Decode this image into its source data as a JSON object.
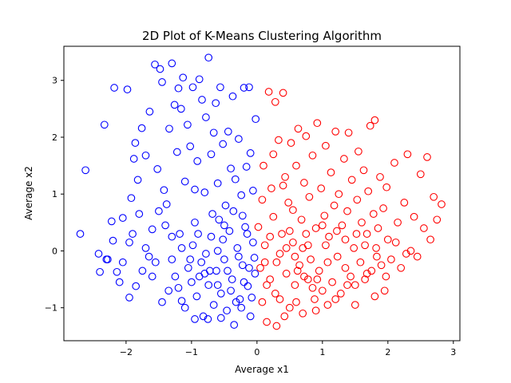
{
  "chart_data": {
    "type": "scatter",
    "title": "2D Plot of K-Means Clustering Algorithm",
    "xlabel": "Average x1",
    "ylabel": "Average x2",
    "xlim": [
      -2.95,
      3.1
    ],
    "ylim": [
      -1.58,
      3.6
    ],
    "xticks": [
      -2,
      -1,
      0,
      1,
      2,
      3
    ],
    "yticks": [
      -1,
      0,
      1,
      2,
      3
    ],
    "grid": false,
    "legend": "none",
    "marker": "hollow-circle",
    "series": [
      {
        "color": "#0000ff",
        "points": [
          [
            -2.7,
            0.3
          ],
          [
            -2.62,
            1.42
          ],
          [
            -2.42,
            -0.05
          ],
          [
            -2.4,
            -0.37
          ],
          [
            -2.33,
            2.22
          ],
          [
            -2.28,
            -0.15
          ],
          [
            -2.22,
            0.52
          ],
          [
            -2.18,
            2.87
          ],
          [
            -2.14,
            -0.37
          ],
          [
            -2.05,
            0.58
          ],
          [
            -1.98,
            2.84
          ],
          [
            -1.95,
            0.15
          ],
          [
            -1.92,
            0.93
          ],
          [
            -1.88,
            1.62
          ],
          [
            -1.86,
            1.9
          ],
          [
            -1.82,
            1.25
          ],
          [
            -1.8,
            0.65
          ],
          [
            -1.76,
            2.16
          ],
          [
            -1.7,
            1.68
          ],
          [
            -1.64,
            2.45
          ],
          [
            -1.6,
            0.38
          ],
          [
            -1.56,
            3.28
          ],
          [
            -1.52,
            1.44
          ],
          [
            -1.48,
            3.2
          ],
          [
            -1.45,
            2.97
          ],
          [
            -1.42,
            1.07
          ],
          [
            -1.38,
            0.82
          ],
          [
            -1.34,
            2.15
          ],
          [
            -1.3,
            3.3
          ],
          [
            -1.26,
            2.57
          ],
          [
            -1.22,
            1.74
          ],
          [
            -1.2,
            2.86
          ],
          [
            -1.16,
            2.5
          ],
          [
            -1.13,
            3.05
          ],
          [
            -1.1,
            1.22
          ],
          [
            -1.06,
            2.22
          ],
          [
            -1.02,
            1.84
          ],
          [
            -0.98,
            2.88
          ],
          [
            -0.95,
            1.08
          ],
          [
            -0.91,
            1.58
          ],
          [
            -0.88,
            3.02
          ],
          [
            -0.84,
            2.66
          ],
          [
            -0.8,
            1.03
          ],
          [
            -0.78,
            2.35
          ],
          [
            -0.74,
            3.4
          ],
          [
            -0.7,
            1.7
          ],
          [
            -0.66,
            2.08
          ],
          [
            -0.63,
            2.6
          ],
          [
            -0.6,
            1.19
          ],
          [
            -0.56,
            2.88
          ],
          [
            -0.52,
            1.88
          ],
          [
            -0.48,
            0.8
          ],
          [
            -0.44,
            2.1
          ],
          [
            -0.4,
            1.45
          ],
          [
            -0.37,
            2.72
          ],
          [
            -0.33,
            1.26
          ],
          [
            -0.28,
            1.97
          ],
          [
            -0.24,
            0.98
          ],
          [
            -0.2,
            2.87
          ],
          [
            -0.16,
            1.48
          ],
          [
            -0.12,
            2.88
          ],
          [
            -0.1,
            1.72
          ],
          [
            -0.06,
            1.06
          ],
          [
            -0.02,
            2.32
          ],
          [
            -0.22,
            0.62
          ],
          [
            -0.5,
            0.45
          ],
          [
            -0.95,
            0.5
          ],
          [
            -1.3,
            0.25
          ],
          [
            -1.7,
            0.05
          ],
          [
            -2.05,
            -0.2
          ],
          [
            -1.85,
            -0.62
          ],
          [
            -1.6,
            -0.45
          ],
          [
            -1.45,
            -0.9
          ],
          [
            -1.3,
            -0.15
          ],
          [
            -1.2,
            -0.65
          ],
          [
            -1.1,
            -1.0
          ],
          [
            -1.05,
            -0.3
          ],
          [
            -0.98,
            0.1
          ],
          [
            -0.92,
            -0.8
          ],
          [
            -0.88,
            -0.45
          ],
          [
            -0.82,
            -1.15
          ],
          [
            -0.78,
            -0.05
          ],
          [
            -0.74,
            -0.6
          ],
          [
            -0.7,
            0.25
          ],
          [
            -0.66,
            -0.95
          ],
          [
            -0.62,
            -0.35
          ],
          [
            -0.58,
            0.55
          ],
          [
            -0.55,
            -0.75
          ],
          [
            -0.5,
            -0.15
          ],
          [
            -0.46,
            -1.05
          ],
          [
            -0.42,
            0.35
          ],
          [
            -0.38,
            -0.5
          ],
          [
            -0.35,
            -1.3
          ],
          [
            -0.3,
            0.05
          ],
          [
            -0.26,
            -0.85
          ],
          [
            -0.22,
            -0.25
          ],
          [
            -0.18,
            0.42
          ],
          [
            -0.14,
            -0.62
          ],
          [
            -0.1,
            -1.15
          ],
          [
            -0.06,
            0.15
          ],
          [
            -0.03,
            -0.4
          ],
          [
            -1.55,
            -0.2
          ],
          [
            -1.4,
            0.45
          ],
          [
            -1.25,
            -0.45
          ],
          [
            -1.15,
            0.05
          ],
          [
            -1.0,
            -0.55
          ],
          [
            -0.9,
            0.3
          ],
          [
            -0.85,
            -0.2
          ],
          [
            -0.72,
            -0.35
          ],
          [
            -0.68,
            0.65
          ],
          [
            -0.6,
            -0.6
          ],
          [
            -0.52,
            0.2
          ],
          [
            -0.45,
            -0.35
          ],
          [
            -0.36,
            0.7
          ],
          [
            -0.32,
            -0.9
          ],
          [
            -0.28,
            -0.1
          ],
          [
            -0.2,
            -0.55
          ],
          [
            -0.15,
            0.3
          ],
          [
            -0.08,
            -0.82
          ],
          [
            -0.04,
            -0.12
          ],
          [
            -1.75,
            -0.35
          ],
          [
            -1.9,
            0.3
          ],
          [
            -2.1,
            -0.55
          ],
          [
            -1.95,
            -0.82
          ],
          [
            -1.65,
            -0.1
          ],
          [
            -1.35,
            -0.7
          ],
          [
            -1.15,
            -0.88
          ],
          [
            -0.95,
            -1.2
          ],
          [
            -0.75,
            -1.2
          ],
          [
            -0.55,
            -1.18
          ],
          [
            -0.4,
            -0.7
          ],
          [
            -0.24,
            -1.0
          ],
          [
            -0.12,
            -0.3
          ],
          [
            -0.6,
            0.0
          ],
          [
            -0.8,
            -0.4
          ],
          [
            -1.02,
            -0.15
          ],
          [
            -1.18,
            0.3
          ],
          [
            -1.5,
            0.7
          ],
          [
            -2.2,
            0.18
          ],
          [
            -2.3,
            -0.15
          ]
        ]
      },
      {
        "color": "#ff0000",
        "points": [
          [
            0.02,
            0.42
          ],
          [
            0.05,
            -0.3
          ],
          [
            0.08,
            -0.9
          ],
          [
            0.1,
            1.5
          ],
          [
            0.12,
            0.1
          ],
          [
            0.15,
            -1.25
          ],
          [
            0.18,
            2.8
          ],
          [
            0.2,
            -0.5
          ],
          [
            0.22,
            1.1
          ],
          [
            0.25,
            0.6
          ],
          [
            0.28,
            2.62
          ],
          [
            0.3,
            -0.2
          ],
          [
            0.33,
            1.95
          ],
          [
            0.35,
            -0.85
          ],
          [
            0.38,
            0.3
          ],
          [
            0.4,
            2.78
          ],
          [
            0.43,
            1.3
          ],
          [
            0.45,
            -0.4
          ],
          [
            0.48,
            0.85
          ],
          [
            0.5,
            -1.0
          ],
          [
            0.52,
            1.9
          ],
          [
            0.55,
            0.15
          ],
          [
            0.58,
            -0.6
          ],
          [
            0.6,
            1.5
          ],
          [
            0.63,
            2.15
          ],
          [
            0.65,
            -0.25
          ],
          [
            0.68,
            0.55
          ],
          [
            0.7,
            -1.1
          ],
          [
            0.72,
            1.2
          ],
          [
            0.75,
            2.02
          ],
          [
            0.78,
            -0.5
          ],
          [
            0.8,
            0.95
          ],
          [
            0.82,
            -0.15
          ],
          [
            0.85,
            1.68
          ],
          [
            0.88,
            -0.85
          ],
          [
            0.9,
            0.4
          ],
          [
            0.92,
            2.25
          ],
          [
            0.95,
            -0.35
          ],
          [
            0.98,
            1.1
          ],
          [
            1.0,
            -0.7
          ],
          [
            1.03,
            0.62
          ],
          [
            1.05,
            1.85
          ],
          [
            1.08,
            -0.2
          ],
          [
            1.1,
            0.25
          ],
          [
            1.13,
            1.38
          ],
          [
            1.15,
            -0.55
          ],
          [
            1.18,
            0.8
          ],
          [
            1.2,
            2.1
          ],
          [
            1.23,
            -0.1
          ],
          [
            1.25,
            1.0
          ],
          [
            1.28,
            -0.75
          ],
          [
            1.3,
            0.45
          ],
          [
            1.33,
            1.62
          ],
          [
            1.35,
            -0.3
          ],
          [
            1.38,
            0.7
          ],
          [
            1.4,
            2.08
          ],
          [
            1.43,
            -0.45
          ],
          [
            1.45,
            1.25
          ],
          [
            1.48,
            0.05
          ],
          [
            1.5,
            -0.6
          ],
          [
            1.53,
            0.9
          ],
          [
            1.55,
            1.75
          ],
          [
            1.58,
            -0.2
          ],
          [
            1.6,
            0.5
          ],
          [
            1.63,
            1.42
          ],
          [
            1.65,
            -0.5
          ],
          [
            1.68,
            0.3
          ],
          [
            1.7,
            1.05
          ],
          [
            1.73,
            2.2
          ],
          [
            1.75,
            -0.35
          ],
          [
            1.78,
            0.65
          ],
          [
            1.8,
            2.3
          ],
          [
            1.83,
            -0.1
          ],
          [
            1.85,
            0.4
          ],
          [
            1.88,
            1.3
          ],
          [
            1.9,
            -0.25
          ],
          [
            1.93,
            0.75
          ],
          [
            1.95,
            -0.7
          ],
          [
            1.98,
            1.12
          ],
          [
            2.0,
            0.2
          ],
          [
            2.05,
            -0.15
          ],
          [
            2.1,
            1.55
          ],
          [
            2.15,
            0.5
          ],
          [
            2.2,
            -0.3
          ],
          [
            2.25,
            0.85
          ],
          [
            2.3,
            1.7
          ],
          [
            2.35,
            0.0
          ],
          [
            2.4,
            0.6
          ],
          [
            2.45,
            -0.1
          ],
          [
            2.5,
            1.35
          ],
          [
            2.55,
            0.4
          ],
          [
            2.6,
            1.65
          ],
          [
            2.65,
            0.2
          ],
          [
            2.7,
            0.95
          ],
          [
            2.75,
            0.55
          ],
          [
            2.82,
            0.82
          ],
          [
            0.15,
            -0.6
          ],
          [
            0.3,
            -1.32
          ],
          [
            0.45,
            0.05
          ],
          [
            0.6,
            -0.9
          ],
          [
            0.75,
            0.3
          ],
          [
            0.9,
            -1.05
          ],
          [
            1.05,
            0.1
          ],
          [
            1.2,
            -0.85
          ],
          [
            1.35,
            0.2
          ],
          [
            1.5,
            -0.95
          ],
          [
            1.65,
            0.1
          ],
          [
            1.8,
            -0.8
          ],
          [
            0.08,
            0.9
          ],
          [
            0.2,
            0.25
          ],
          [
            0.35,
            -0.05
          ],
          [
            0.5,
            0.35
          ],
          [
            0.62,
            -0.35
          ],
          [
            0.78,
            0.1
          ],
          [
            0.92,
            -0.5
          ],
          [
            1.08,
            -0.95
          ],
          [
            1.22,
            0.35
          ],
          [
            1.38,
            -0.6
          ],
          [
            1.52,
            0.3
          ],
          [
            1.68,
            -0.4
          ],
          [
            1.82,
            0.05
          ],
          [
            1.97,
            -0.45
          ],
          [
            2.12,
            0.15
          ],
          [
            2.28,
            -0.05
          ],
          [
            0.25,
            1.7
          ],
          [
            0.4,
            1.15
          ],
          [
            0.55,
            0.72
          ],
          [
            0.7,
            0.05
          ],
          [
            0.85,
            -0.65
          ],
          [
            1.0,
            0.45
          ],
          [
            0.12,
            -0.2
          ],
          [
            0.28,
            -0.75
          ],
          [
            0.42,
            -1.15
          ],
          [
            0.58,
            -0.1
          ],
          [
            0.72,
            -0.45
          ]
        ]
      }
    ]
  }
}
